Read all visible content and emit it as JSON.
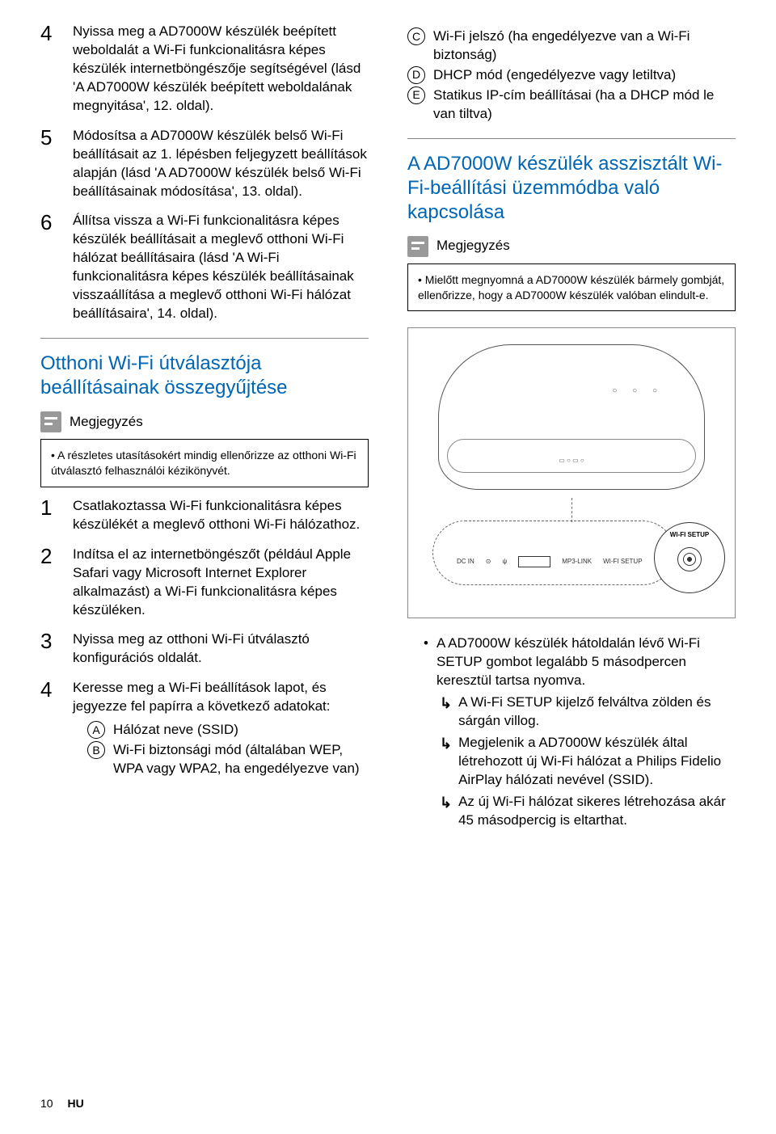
{
  "left": {
    "step4": "Nyissa meg a AD7000W készülék beépített weboldalát a Wi-Fi funkcionalitásra képes készülék internetböngészője segítségével (lásd 'A AD7000W készülék beépített weboldalának megnyitása', 12. oldal).",
    "step5": "Módosítsa a AD7000W készülék belső Wi-Fi beállításait az 1. lépésben feljegyzett beállítások alapján (lásd 'A AD7000W készülék belső Wi-Fi beállításainak módosítása', 13. oldal).",
    "step6": "Állítsa vissza a Wi-Fi funkcionalitásra képes készülék beállításait a meglevő otthoni Wi-Fi hálózat beállításaira (lásd 'A Wi-Fi funkcionalitásra képes készülék beállításainak visszaállítása a meglevő otthoni Wi-Fi hálózat beállításaira', 14. oldal).",
    "heading1": "Otthoni Wi-Fi útválasztója beállításainak összegyűjtése",
    "noteTitle": "Megjegyzés",
    "note1": "A részletes utasításokért mindig ellenőrizze az otthoni Wi-Fi útválasztó felhasználói kézikönyvét.",
    "b_step1": "Csatlakoztassa Wi-Fi funkcionalitásra képes készülékét a meglevő otthoni Wi-Fi hálózathoz.",
    "b_step2": "Indítsa el az internetböngészőt (például Apple Safari vagy Microsoft Internet Explorer alkalmazást) a Wi-Fi funkcionalitásra képes készüléken.",
    "b_step3": "Nyissa meg az otthoni Wi-Fi útválasztó konfigurációs oldalát.",
    "b_step4": "Keresse meg a Wi-Fi beállítások lapot, és jegyezze fel papírra a következő adatokat:",
    "subA": "Hálózat neve (SSID)",
    "subB": "Wi-Fi biztonsági mód (általában WEP, WPA vagy WPA2, ha engedélyezve van)"
  },
  "right": {
    "subC": "Wi-Fi jelszó (ha engedélyezve van a Wi-Fi biztonság)",
    "subD": "DHCP mód (engedélyezve vagy letiltva)",
    "subE": "Statikus IP-cím beállításai (ha a DHCP mód le van tiltva)",
    "heading2": "A AD7000W készülék asszisztált Wi-Fi-beállítási üzemmódba való kapcsolása",
    "noteTitle": "Megjegyzés",
    "note2": "Mielőtt megnyomná a AD7000W készülék bármely gombját, ellenőrizze, hogy a AD7000W készülék valóban elindult-e.",
    "illu": {
      "dcin": "DC IN",
      "mp3": "MP3-LINK",
      "wifi": "WI-FI SETUP",
      "wifi_big": "WI-FI SETUP"
    },
    "bullet1_a": "A AD7000W készülék hátoldalán lévő ",
    "bullet1_b": "Wi-Fi SETUP",
    "bullet1_c": " gombot legalább 5 másodpercen keresztül tartsa nyomva.",
    "arrow1": "A Wi-Fi SETUP kijelző felváltva zölden és sárgán villog.",
    "arrow2_a": "Megjelenik a AD7000W készülék által létrehozott új Wi-Fi hálózat a ",
    "arrow2_b": "Philips Fidelio AirPlay",
    "arrow2_c": " hálózati nevével (SSID).",
    "arrow3": "Az új Wi-Fi hálózat sikeres létrehozása akár 45 másodpercig is eltarthat."
  },
  "nums": {
    "n1": "1",
    "n2": "2",
    "n3": "3",
    "n4": "4",
    "n5": "5",
    "n6": "6"
  },
  "letters": {
    "A": "A",
    "B": "B",
    "C": "C",
    "D": "D",
    "E": "E"
  },
  "footer": {
    "page": "10",
    "lang": "HU"
  }
}
